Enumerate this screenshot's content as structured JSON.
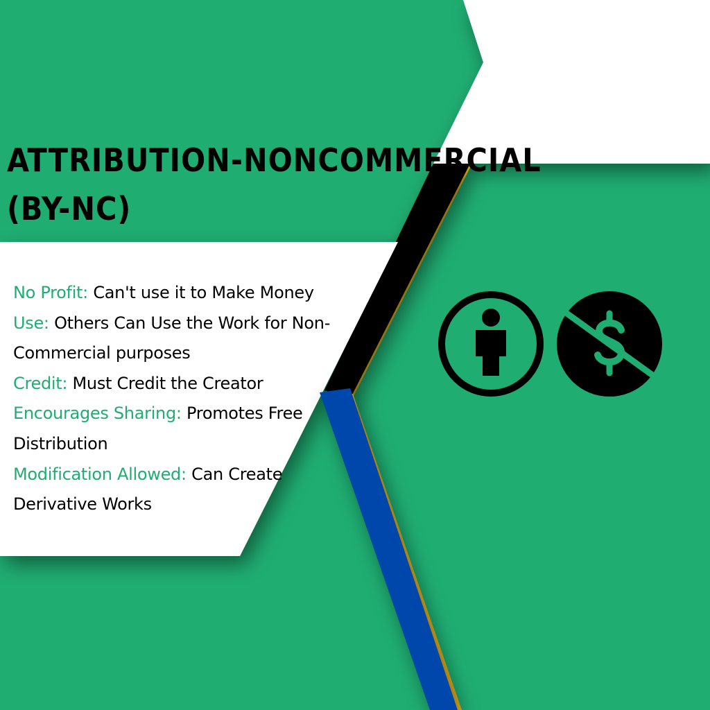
{
  "title": {
    "line1": "ATTRIBUTION-NONCOMMERCIAL",
    "line2": "(BY-NC)"
  },
  "features": [
    {
      "key": "No Profit:",
      "value": "Can't use it to Make Money"
    },
    {
      "key": "Use:",
      "value": "Others Can Use the Work for Non-Commercial purposes"
    },
    {
      "key": "Credit:",
      "value": "Must Credit the Creator"
    },
    {
      "key": "Encourages Sharing:",
      "value": "Promotes Free Distribution"
    },
    {
      "key": "Modification Allowed:",
      "value": "Can Create Derivative Works"
    }
  ],
  "icons": [
    "attribution-person-icon",
    "noncommercial-dollar-icon"
  ],
  "colors": {
    "background_green": "#1fad72",
    "panel_white": "#ffffff",
    "stripe_black": "#000000",
    "stripe_blue": "#0047ab",
    "stripe_gold": "#e8b21a"
  }
}
